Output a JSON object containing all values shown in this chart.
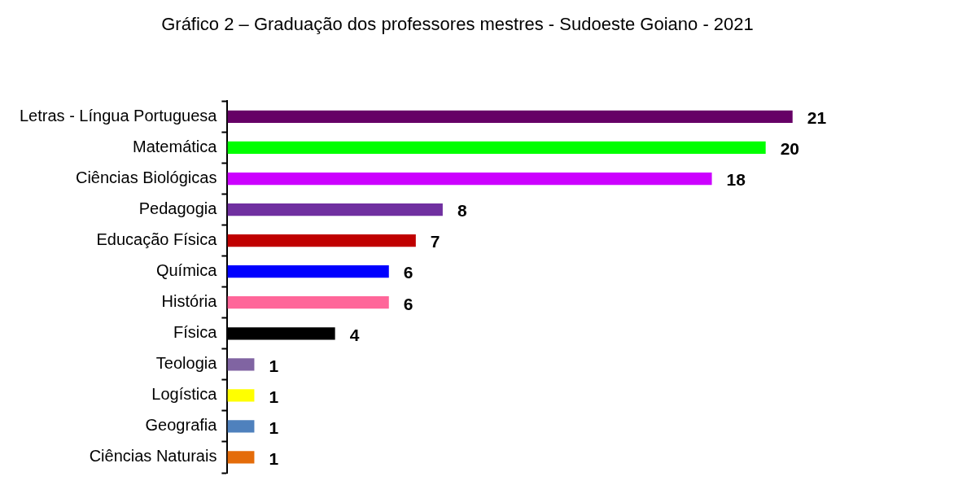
{
  "chart_data": {
    "type": "bar",
    "orientation": "horizontal",
    "title": "Gráfico 2 – Graduação dos professores mestres - Sudoeste Goiano - 2021",
    "categories": [
      "Letras - Língua Portuguesa",
      "Matemática",
      "Ciências Biológicas",
      "Pedagogia",
      "Educação Física",
      "Química",
      "História",
      "Física",
      "Teologia",
      "Logística",
      "Geografia",
      "Ciências Naturais"
    ],
    "values": [
      21,
      20,
      18,
      8,
      7,
      6,
      6,
      4,
      1,
      1,
      1,
      1
    ],
    "colors": [
      "#660066",
      "#00ff00",
      "#cc00ff",
      "#7030a0",
      "#c00000",
      "#0000ff",
      "#ff6699",
      "#000000",
      "#8064a2",
      "#ffff00",
      "#4f81bd",
      "#e46c0a"
    ],
    "data_labels": true,
    "legend": false
  }
}
